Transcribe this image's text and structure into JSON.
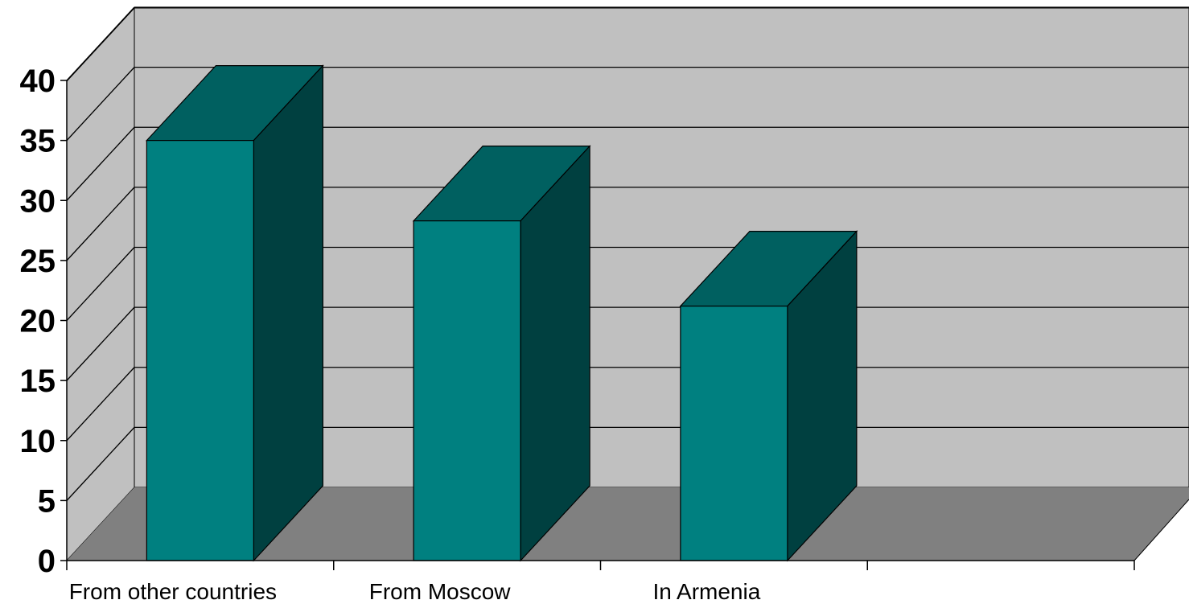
{
  "chart_data": {
    "type": "bar",
    "style": "3d-column",
    "categories": [
      "From other countries",
      "From Moscow",
      "In Armenia",
      ""
    ],
    "values": [
      35,
      28.3,
      21.2,
      null
    ],
    "ylim": [
      0,
      40
    ],
    "yticks": [
      0,
      5,
      10,
      15,
      20,
      25,
      30,
      35,
      40
    ],
    "title": "",
    "xlabel": "",
    "ylabel": "",
    "grid": true,
    "legend": "none",
    "colors": {
      "bar_front": "#008080",
      "bar_top": "#006060",
      "bar_side": "#004040",
      "back_wall": "#c0c0c0",
      "side_wall": "#c0c0c0",
      "floor": "#808080",
      "gridline": "#000000"
    }
  }
}
